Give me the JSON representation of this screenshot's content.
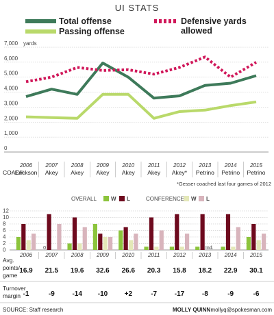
{
  "title": "UI STATS",
  "legend": {
    "total": "Total offense",
    "passing": "Passing offense",
    "defensive_line1": "Defensive yards",
    "defensive_line2": "allowed"
  },
  "colors": {
    "total": "#3e7a5a",
    "passing": "#b9d96a",
    "defensive": "#d0185a",
    "overall_w": "#8cc43c",
    "overall_l": "#6e0a1e",
    "conf_w": "#e4e8b8",
    "conf_l": "#d8b4bc"
  },
  "y_unit": "yards",
  "chart_data": [
    {
      "type": "line",
      "x": [
        "2006",
        "2007",
        "2008",
        "2009",
        "2010",
        "2011",
        "2012",
        "2013",
        "2014",
        "2015"
      ],
      "ylim": [
        0,
        7000
      ],
      "y_ticks": [
        "7,000",
        "6,000",
        "5,000",
        "4,000",
        "3,000",
        "2,000",
        "1,000",
        "0"
      ],
      "grid": true,
      "series": [
        {
          "name": "Total offense",
          "values": [
            3700,
            4200,
            3850,
            5950,
            5000,
            3600,
            3750,
            4450,
            4600,
            5100
          ]
        },
        {
          "name": "Passing offense",
          "values": [
            2350,
            2300,
            2250,
            3850,
            3850,
            2250,
            2700,
            2800,
            3100,
            3350
          ]
        },
        {
          "name": "Defensive yards allowed",
          "values": [
            4700,
            5000,
            5650,
            5450,
            5500,
            5200,
            5650,
            6350,
            5000,
            6000
          ]
        }
      ]
    },
    {
      "type": "bar",
      "categories": [
        "2006",
        "2007",
        "2008",
        "2009",
        "2010",
        "2011",
        "2012",
        "2013",
        "2014",
        "2015"
      ],
      "ylim": [
        0,
        12
      ],
      "y_ticks": [
        "12",
        "10",
        "8",
        "6",
        "4",
        "2",
        "0"
      ],
      "series": [
        {
          "name": "OVERALL W",
          "values": [
            4,
            0,
            2,
            8,
            6,
            1,
            1,
            1,
            1,
            4
          ]
        },
        {
          "name": "OVERALL L",
          "values": [
            8,
            11,
            10,
            5,
            7,
            10,
            11,
            11,
            11,
            8
          ]
        },
        {
          "name": "CONFERENCE W",
          "values": [
            3,
            0,
            2,
            4,
            3,
            1,
            1,
            0,
            1,
            3
          ]
        },
        {
          "name": "CONFERENCE L",
          "values": [
            5,
            8,
            7,
            4,
            5,
            6,
            5,
            0,
            7,
            5
          ]
        }
      ]
    }
  ],
  "coach_label": "COACH",
  "coaches": [
    "Erickson",
    "Akey",
    "Akey",
    "Akey",
    "Akey",
    "Akey",
    "Akey*",
    "Petrino",
    "Petrino",
    "Petrino"
  ],
  "coach_note": "*Gesser coached last four games of 2012",
  "bar_legend": {
    "overall": "OVERALL",
    "conference": "CONFERENCE",
    "w": "W",
    "l": "L"
  },
  "zero_label": "0",
  "ind_label": "Ind.",
  "avg_label": [
    "Avg.",
    "points/",
    "game"
  ],
  "avg_points": [
    "16.9",
    "21.5",
    "19.6",
    "32.6",
    "26.6",
    "20.3",
    "15.8",
    "18.2",
    "22.9",
    "30.1"
  ],
  "turnover_label": [
    "Turnover",
    "margin"
  ],
  "turnover_margin": [
    "-1",
    "-9",
    "-14",
    "-10",
    "+2",
    "-7",
    "-17",
    "-8",
    "-9",
    "-6"
  ],
  "source": "SOURCE: Staff research",
  "credit_name": "MOLLY QUINN",
  "credit_email": "mollyq@spokesman.com"
}
